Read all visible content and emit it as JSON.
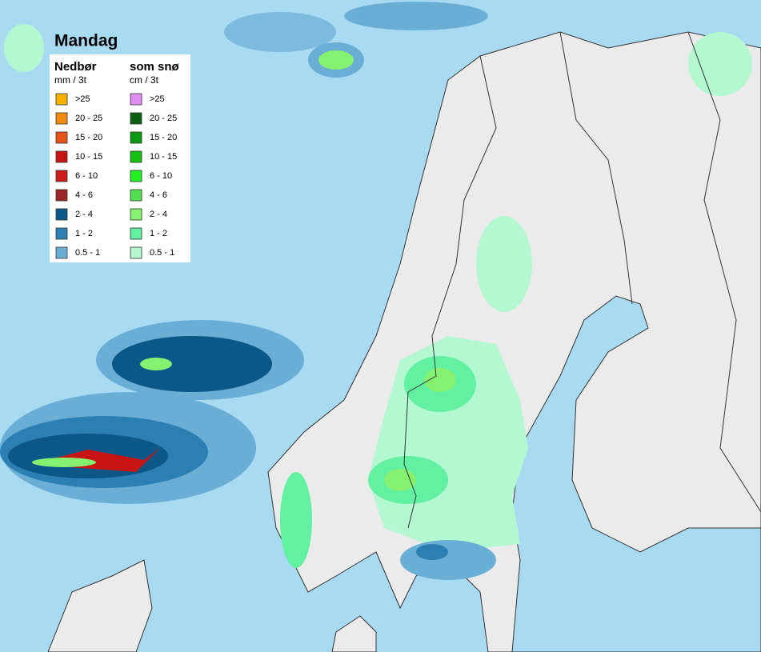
{
  "title": "Mandag",
  "legend": {
    "rain": {
      "title": "Nedbør",
      "unit": "mm / 3t",
      "items": [
        {
          "label": ">25",
          "color": "#f5b000"
        },
        {
          "label": "20 - 25",
          "color": "#f08a10"
        },
        {
          "label": "15 - 20",
          "color": "#e85418"
        },
        {
          "label": "10 - 15",
          "color": "#c81414"
        },
        {
          "label": "6 - 10",
          "color": "#cc1c1c"
        },
        {
          "label": "4 - 6",
          "color": "#9c2424"
        },
        {
          "label": "2 - 4",
          "color": "#0b5788"
        },
        {
          "label": "1 - 2",
          "color": "#2c7fb2"
        },
        {
          "label": "0.5 - 1",
          "color": "#6aaed6"
        }
      ]
    },
    "snow": {
      "title": "som snø",
      "unit": "cm / 3t",
      "items": [
        {
          "label": ">25",
          "color": "#e08ef0"
        },
        {
          "label": "20 - 25",
          "color": "#0a5e12"
        },
        {
          "label": "15 - 20",
          "color": "#0a9a12"
        },
        {
          "label": "10 - 15",
          "color": "#14c014"
        },
        {
          "label": "6 - 10",
          "color": "#22f022"
        },
        {
          "label": "4 - 6",
          "color": "#50e050"
        },
        {
          "label": "2 - 4",
          "color": "#86f070"
        },
        {
          "label": "1 - 2",
          "color": "#62f0a2"
        },
        {
          "label": "0.5 - 1",
          "color": "#b4f8d2"
        }
      ]
    }
  }
}
